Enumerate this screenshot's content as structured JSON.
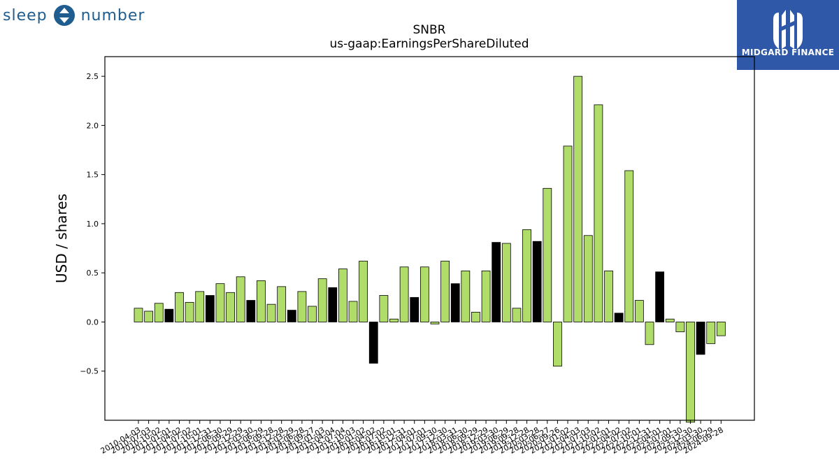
{
  "logos": {
    "left_text_a": "sleep",
    "left_text_b": "number",
    "left_icon": "sleep-number-diamond-icon",
    "right_text": "MIDGARD FINANCE",
    "right_icon": "midgard-emblem-icon",
    "left_color": "#1f5c8f",
    "right_bg": "#2f58a8"
  },
  "chart_data": {
    "type": "bar",
    "title": "SNBR",
    "subtitle": "us-gaap:EarningsPerShareDiluted",
    "ylabel": "USD / shares",
    "xlabel": "",
    "ylim": [
      -1.0,
      2.7
    ],
    "yticks": [
      -0.5,
      0.0,
      0.5,
      1.0,
      1.5,
      2.0,
      2.5
    ],
    "grid": false,
    "colors": {
      "quarter": "#b0dc6a",
      "annual_q4": "#000000",
      "edge": "#000000"
    },
    "categories": [
      "2010-04-03",
      "2010-07-03",
      "2010-10-02",
      "2011-01-01",
      "2011-04-02",
      "2011-07-02",
      "2011-10-01",
      "2011-12-31",
      "2012-06-30",
      "2012-09-29",
      "2012-12-29",
      "2013-03-30",
      "2013-06-29",
      "2013-09-28",
      "2013-12-28",
      "2014-03-29",
      "2014-06-28",
      "2014-09-27",
      "2015-01-03",
      "2015-04-04",
      "2015-07-04",
      "2015-10-03",
      "2016-01-02",
      "2016-04-02",
      "2016-07-02",
      "2016-10-01",
      "2016-12-31",
      "2017-04-01",
      "2017-07-01",
      "2017-09-30",
      "2017-12-30",
      "2018-03-31",
      "2018-06-30",
      "2018-09-29",
      "2018-12-29",
      "2019-03-30",
      "2019-06-29",
      "2019-09-28",
      "2019-12-28",
      "2020-03-28",
      "2020-06-27",
      "2020-09-26",
      "2021-01-02",
      "2021-04-03",
      "2021-07-03",
      "2021-10-02",
      "2022-01-01",
      "2022-04-02",
      "2022-07-02",
      "2022-10-01",
      "2022-12-31",
      "2023-04-01",
      "2023-07-01",
      "2023-09-30",
      "2023-12-30",
      "2024-03-30",
      "2024-06-29",
      "2024-09-28"
    ],
    "xtick_labels": [
      "2010-04-03",
      "2010-07-03",
      "2010-10-02",
      "2011-01-01",
      "2011-04-02",
      "2011-07-02",
      "2011-10-01",
      "2011-12-31",
      "2012-06-30",
      "2012-09-29",
      "2012-12-29",
      "2013-03-30",
      "2013-06-29",
      "2013-09-28",
      "2013-12-28",
      "2014-03-29",
      "2014-06-28",
      "2014-09-27",
      "2015-01-03",
      "2015-04-04",
      "2015-07-04",
      "2015-10-03",
      "2016-01-02",
      "2016-04-02",
      "2016-07-02",
      "2016-10-01",
      "2016-12-31",
      "2017-04-01",
      "2017-07-01",
      "2017-09-30",
      "2017-12-30",
      "2018-03-31",
      "2018-06-30",
      "2018-09-29",
      "2018-12-29",
      "2019-03-30",
      "2019-06-29",
      "2019-09-28",
      "2019-12-28",
      "2020-03-28",
      "2020-06-27",
      "2020-09-26",
      "2021-01-02",
      "2021-04-03",
      "2021-07-03",
      "2021-10-02",
      "2022-01-01",
      "2022-04-02",
      "2022-07-02",
      "2022-10-01",
      "2022-12-31",
      "2023-04-01",
      "2023-07-01",
      "2023-09-30",
      "2023-12-30",
      "2024-03-30",
      "2024-06-29",
      "2024-09-28"
    ],
    "values": [
      0.14,
      0.11,
      0.19,
      0.13,
      0.3,
      0.2,
      0.31,
      0.27,
      0.39,
      0.3,
      0.46,
      0.22,
      0.42,
      0.18,
      0.36,
      0.12,
      0.31,
      0.16,
      0.44,
      0.35,
      0.54,
      0.21,
      0.62,
      -0.42,
      0.27,
      0.03,
      0.56,
      0.25,
      0.56,
      -0.02,
      0.62,
      0.39,
      0.52,
      0.1,
      0.52,
      0.81,
      0.8,
      0.14,
      0.94,
      0.82,
      1.36,
      -0.45,
      1.79,
      2.5,
      0.88,
      2.21,
      0.52,
      0.09,
      1.54,
      0.22,
      -0.23,
      0.51,
      0.03,
      -0.1,
      -1.02,
      -0.33,
      -0.22,
      -0.14
    ],
    "highlight": [
      false,
      false,
      false,
      true,
      false,
      false,
      false,
      true,
      false,
      false,
      false,
      true,
      false,
      false,
      false,
      true,
      false,
      false,
      false,
      true,
      false,
      false,
      false,
      true,
      false,
      false,
      false,
      true,
      false,
      false,
      false,
      true,
      false,
      false,
      false,
      true,
      false,
      false,
      false,
      true,
      false,
      false,
      false,
      false,
      false,
      false,
      false,
      true,
      false,
      false,
      false,
      true,
      false,
      false,
      false,
      true,
      false,
      false
    ]
  }
}
